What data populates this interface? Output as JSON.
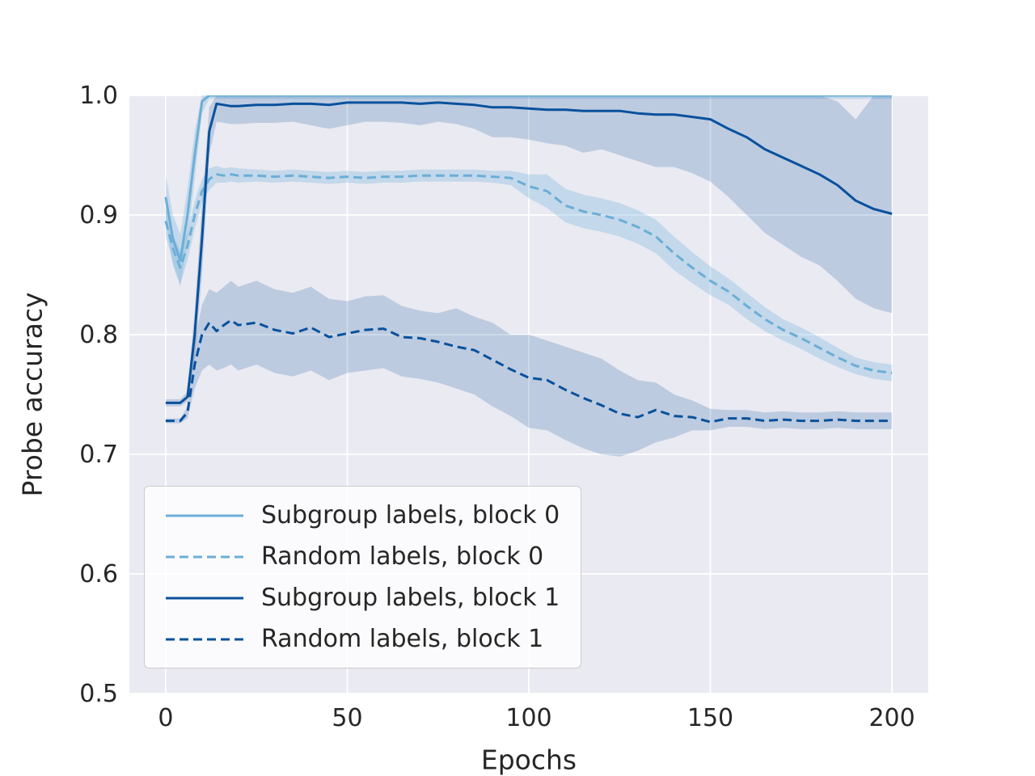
{
  "chart_data": {
    "type": "line",
    "title": "",
    "xlabel": "Epochs",
    "ylabel": "Probe accuracy",
    "xlim": [
      0,
      200
    ],
    "ylim": [
      0.5,
      1.0
    ],
    "xticks": {
      "values": [
        0,
        50,
        100,
        150,
        200
      ],
      "labels": [
        "0",
        "50",
        "100",
        "150",
        "200"
      ]
    },
    "yticks": {
      "values": [
        0.5,
        0.6,
        0.7,
        0.8,
        0.9,
        1.0
      ],
      "labels": [
        "0.5",
        "0.6",
        "0.7",
        "0.8",
        "0.9",
        "1.0"
      ]
    },
    "grid": true,
    "legend_position": "lower left",
    "colors": {
      "axes_background": "#eaeaf2",
      "grid": "#ffffff",
      "text": "#262626",
      "light_blue": "#6baed6",
      "dark_blue": "#08519c"
    },
    "x": [
      0,
      2,
      4,
      6,
      8,
      10,
      12,
      14,
      16,
      18,
      20,
      25,
      30,
      35,
      40,
      45,
      50,
      55,
      60,
      65,
      70,
      75,
      80,
      85,
      90,
      95,
      100,
      105,
      110,
      115,
      120,
      125,
      130,
      135,
      140,
      145,
      150,
      155,
      160,
      165,
      170,
      175,
      180,
      185,
      190,
      195,
      200
    ],
    "series": [
      {
        "name": "Subgroup labels, block 0",
        "color": "#6baed6",
        "dash": false,
        "band_opacity": 0.3,
        "y": [
          0.915,
          0.88,
          0.862,
          0.9,
          0.95,
          0.995,
          1.0,
          1.0,
          1.0,
          1.0,
          1.0,
          1.0,
          1.0,
          1.0,
          1.0,
          1.0,
          1.0,
          1.0,
          1.0,
          1.0,
          1.0,
          1.0,
          1.0,
          1.0,
          1.0,
          1.0,
          1.0,
          1.0,
          1.0,
          1.0,
          1.0,
          1.0,
          1.0,
          1.0,
          1.0,
          1.0,
          1.0,
          1.0,
          1.0,
          1.0,
          1.0,
          1.0,
          1.0,
          1.0,
          1.0,
          1.0,
          1.0
        ],
        "lo": [
          0.896,
          0.858,
          0.84,
          0.878,
          0.93,
          0.985,
          0.997,
          0.997,
          0.997,
          0.997,
          0.997,
          0.997,
          0.997,
          0.997,
          0.997,
          0.997,
          0.997,
          0.997,
          0.997,
          0.997,
          0.997,
          0.997,
          0.997,
          0.997,
          0.997,
          0.997,
          0.997,
          0.997,
          0.997,
          0.997,
          0.997,
          0.997,
          0.997,
          0.997,
          0.997,
          0.997,
          0.997,
          0.997,
          0.997,
          0.997,
          0.997,
          0.997,
          0.997,
          0.997,
          0.997,
          0.997,
          0.997
        ],
        "hi": [
          0.934,
          0.9,
          0.884,
          0.922,
          0.97,
          1.0,
          1.0,
          1.0,
          1.0,
          1.0,
          1.0,
          1.0,
          1.0,
          1.0,
          1.0,
          1.0,
          1.0,
          1.0,
          1.0,
          1.0,
          1.0,
          1.0,
          1.0,
          1.0,
          1.0,
          1.0,
          1.0,
          1.0,
          1.0,
          1.0,
          1.0,
          1.0,
          1.0,
          1.0,
          1.0,
          1.0,
          1.0,
          1.0,
          1.0,
          1.0,
          1.0,
          1.0,
          1.0,
          1.0,
          1.0,
          1.0,
          1.0
        ]
      },
      {
        "name": "Random labels, block 0",
        "color": "#6baed6",
        "dash": true,
        "band_opacity": 0.3,
        "y": [
          0.895,
          0.872,
          0.856,
          0.874,
          0.9,
          0.92,
          0.93,
          0.934,
          0.933,
          0.934,
          0.933,
          0.933,
          0.932,
          0.933,
          0.932,
          0.931,
          0.932,
          0.931,
          0.932,
          0.932,
          0.933,
          0.933,
          0.933,
          0.933,
          0.932,
          0.931,
          0.924,
          0.92,
          0.908,
          0.903,
          0.9,
          0.896,
          0.89,
          0.882,
          0.868,
          0.856,
          0.845,
          0.836,
          0.824,
          0.813,
          0.804,
          0.797,
          0.789,
          0.781,
          0.774,
          0.77,
          0.768
        ],
        "lo": [
          0.883,
          0.86,
          0.842,
          0.862,
          0.888,
          0.91,
          0.921,
          0.927,
          0.927,
          0.928,
          0.927,
          0.928,
          0.927,
          0.928,
          0.927,
          0.926,
          0.927,
          0.926,
          0.927,
          0.927,
          0.928,
          0.928,
          0.928,
          0.928,
          0.927,
          0.925,
          0.914,
          0.906,
          0.894,
          0.889,
          0.886,
          0.882,
          0.876,
          0.868,
          0.854,
          0.843,
          0.833,
          0.825,
          0.813,
          0.803,
          0.795,
          0.788,
          0.78,
          0.773,
          0.767,
          0.763,
          0.761
        ],
        "hi": [
          0.907,
          0.884,
          0.87,
          0.886,
          0.912,
          0.93,
          0.939,
          0.941,
          0.939,
          0.94,
          0.939,
          0.938,
          0.937,
          0.938,
          0.937,
          0.936,
          0.937,
          0.936,
          0.937,
          0.937,
          0.938,
          0.938,
          0.938,
          0.938,
          0.937,
          0.937,
          0.934,
          0.934,
          0.922,
          0.917,
          0.914,
          0.91,
          0.904,
          0.896,
          0.882,
          0.869,
          0.857,
          0.847,
          0.835,
          0.823,
          0.813,
          0.806,
          0.798,
          0.789,
          0.781,
          0.777,
          0.775
        ]
      },
      {
        "name": "Subgroup labels, block 1",
        "color": "#08519c",
        "dash": false,
        "band_opacity": 0.2,
        "y": [
          0.743,
          0.743,
          0.743,
          0.748,
          0.8,
          0.88,
          0.97,
          0.993,
          0.992,
          0.991,
          0.991,
          0.992,
          0.992,
          0.993,
          0.993,
          0.992,
          0.994,
          0.994,
          0.994,
          0.994,
          0.993,
          0.994,
          0.993,
          0.992,
          0.99,
          0.99,
          0.989,
          0.988,
          0.988,
          0.987,
          0.987,
          0.987,
          0.985,
          0.984,
          0.984,
          0.982,
          0.98,
          0.972,
          0.965,
          0.955,
          0.948,
          0.941,
          0.934,
          0.925,
          0.912,
          0.905,
          0.901
        ],
        "lo": [
          0.74,
          0.74,
          0.74,
          0.744,
          0.78,
          0.85,
          0.95,
          0.978,
          0.977,
          0.976,
          0.976,
          0.977,
          0.977,
          0.978,
          0.975,
          0.972,
          0.975,
          0.978,
          0.978,
          0.977,
          0.975,
          0.978,
          0.976,
          0.972,
          0.965,
          0.965,
          0.963,
          0.96,
          0.958,
          0.952,
          0.955,
          0.95,
          0.945,
          0.94,
          0.94,
          0.935,
          0.928,
          0.915,
          0.9,
          0.885,
          0.875,
          0.865,
          0.858,
          0.845,
          0.83,
          0.822,
          0.818
        ],
        "hi": [
          0.746,
          0.746,
          0.746,
          0.752,
          0.82,
          0.91,
          0.99,
          1.0,
          1.0,
          1.0,
          1.0,
          1.0,
          1.0,
          1.0,
          1.0,
          1.0,
          1.0,
          1.0,
          1.0,
          1.0,
          1.0,
          1.0,
          1.0,
          1.0,
          1.0,
          1.0,
          1.0,
          1.0,
          1.0,
          1.0,
          1.0,
          1.0,
          1.0,
          1.0,
          1.0,
          1.0,
          1.0,
          1.0,
          1.0,
          1.0,
          1.0,
          1.0,
          1.0,
          0.995,
          0.98,
          1.0,
          1.0
        ]
      },
      {
        "name": "Random labels, block 1",
        "color": "#08519c",
        "dash": true,
        "band_opacity": 0.2,
        "y": [
          0.728,
          0.728,
          0.728,
          0.735,
          0.775,
          0.8,
          0.81,
          0.803,
          0.808,
          0.812,
          0.808,
          0.81,
          0.804,
          0.801,
          0.806,
          0.798,
          0.801,
          0.804,
          0.805,
          0.798,
          0.797,
          0.794,
          0.79,
          0.787,
          0.779,
          0.771,
          0.764,
          0.762,
          0.754,
          0.747,
          0.741,
          0.734,
          0.731,
          0.737,
          0.732,
          0.731,
          0.727,
          0.73,
          0.73,
          0.728,
          0.729,
          0.728,
          0.728,
          0.729,
          0.728,
          0.728,
          0.728
        ],
        "lo": [
          0.726,
          0.726,
          0.726,
          0.73,
          0.755,
          0.77,
          0.775,
          0.77,
          0.772,
          0.775,
          0.77,
          0.775,
          0.768,
          0.765,
          0.77,
          0.762,
          0.768,
          0.77,
          0.772,
          0.765,
          0.763,
          0.76,
          0.755,
          0.75,
          0.74,
          0.732,
          0.722,
          0.72,
          0.712,
          0.705,
          0.7,
          0.698,
          0.703,
          0.71,
          0.714,
          0.72,
          0.72,
          0.723,
          0.723,
          0.721,
          0.722,
          0.721,
          0.721,
          0.722,
          0.721,
          0.721,
          0.721
        ],
        "hi": [
          0.73,
          0.73,
          0.73,
          0.74,
          0.795,
          0.825,
          0.838,
          0.835,
          0.84,
          0.845,
          0.84,
          0.845,
          0.838,
          0.835,
          0.84,
          0.83,
          0.828,
          0.832,
          0.833,
          0.824,
          0.82,
          0.818,
          0.822,
          0.815,
          0.81,
          0.8,
          0.8,
          0.795,
          0.79,
          0.785,
          0.78,
          0.77,
          0.762,
          0.76,
          0.75,
          0.745,
          0.738,
          0.737,
          0.737,
          0.735,
          0.736,
          0.735,
          0.735,
          0.736,
          0.735,
          0.735,
          0.735
        ]
      }
    ]
  }
}
